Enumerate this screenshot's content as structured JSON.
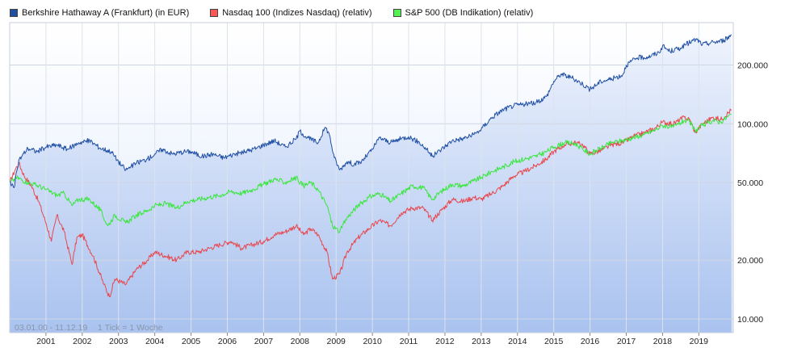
{
  "legend": [
    {
      "label": "Berkshire Hathaway A (Frankfurt) (in EUR)",
      "color": "#1f4fa5",
      "swatch": "#1f4fa5"
    },
    {
      "label": "Nasdaq 100 (Indizes Nasdaq) (relativ)",
      "color": "#e8484e",
      "swatch": "#ff5555"
    },
    {
      "label": "S&P 500 (DB Indikation) (relativ)",
      "color": "#39e63d",
      "swatch": "#55ee55"
    }
  ],
  "footer": {
    "range": "03.01.00 - 11.12.19",
    "tick_info": "1 Tick = 1 Woche"
  },
  "chart_data": {
    "type": "line",
    "yscale": "log",
    "xlim": [
      2000.0,
      2019.95
    ],
    "ylim": [
      8.5,
      330
    ],
    "x_ticks": [
      "2001",
      "2002",
      "2003",
      "2004",
      "2005",
      "2006",
      "2007",
      "2008",
      "2009",
      "2010",
      "2011",
      "2012",
      "2013",
      "2014",
      "2015",
      "2016",
      "2017",
      "2018",
      "2019"
    ],
    "y_ticks": [
      {
        "value": 10,
        "label": "10.000"
      },
      {
        "value": 20,
        "label": "20.000"
      },
      {
        "value": 50,
        "label": "50.000"
      },
      {
        "value": 100,
        "label": "100.000"
      },
      {
        "value": 200,
        "label": "200.000"
      }
    ],
    "series": [
      {
        "name": "Berkshire Hathaway A (Frankfurt) (in EUR)",
        "color": "#1f4fa5",
        "filled": true,
        "points": [
          [
            2000.0,
            50
          ],
          [
            2000.12,
            47
          ],
          [
            2000.25,
            65
          ],
          [
            2000.5,
            75
          ],
          [
            2000.75,
            72
          ],
          [
            2001.0,
            76
          ],
          [
            2001.3,
            78
          ],
          [
            2001.6,
            74
          ],
          [
            2001.9,
            80
          ],
          [
            2002.2,
            82
          ],
          [
            2002.5,
            75
          ],
          [
            2002.8,
            72
          ],
          [
            2003.0,
            64
          ],
          [
            2003.2,
            58
          ],
          [
            2003.5,
            63
          ],
          [
            2003.8,
            66
          ],
          [
            2004.0,
            70
          ],
          [
            2004.2,
            74
          ],
          [
            2004.5,
            70
          ],
          [
            2004.8,
            72
          ],
          [
            2005.0,
            72
          ],
          [
            2005.3,
            68
          ],
          [
            2005.6,
            70
          ],
          [
            2005.9,
            67
          ],
          [
            2006.2,
            70
          ],
          [
            2006.5,
            72
          ],
          [
            2006.8,
            75
          ],
          [
            2007.0,
            78
          ],
          [
            2007.3,
            82
          ],
          [
            2007.6,
            76
          ],
          [
            2007.9,
            84
          ],
          [
            2008.0,
            92
          ],
          [
            2008.2,
            85
          ],
          [
            2008.5,
            80
          ],
          [
            2008.7,
            96
          ],
          [
            2008.8,
            90
          ],
          [
            2008.95,
            67
          ],
          [
            2009.1,
            58
          ],
          [
            2009.3,
            64
          ],
          [
            2009.5,
            62
          ],
          [
            2009.7,
            64
          ],
          [
            2010.0,
            74
          ],
          [
            2010.2,
            85
          ],
          [
            2010.5,
            80
          ],
          [
            2010.8,
            84
          ],
          [
            2011.0,
            86
          ],
          [
            2011.3,
            80
          ],
          [
            2011.5,
            74
          ],
          [
            2011.65,
            68
          ],
          [
            2011.9,
            74
          ],
          [
            2012.2,
            82
          ],
          [
            2012.5,
            84
          ],
          [
            2012.8,
            88
          ],
          [
            2013.0,
            94
          ],
          [
            2013.3,
            108
          ],
          [
            2013.6,
            118
          ],
          [
            2013.9,
            124
          ],
          [
            2014.2,
            126
          ],
          [
            2014.5,
            128
          ],
          [
            2014.8,
            138
          ],
          [
            2015.0,
            165
          ],
          [
            2015.2,
            180
          ],
          [
            2015.5,
            172
          ],
          [
            2015.8,
            160
          ],
          [
            2016.0,
            150
          ],
          [
            2016.3,
            165
          ],
          [
            2016.6,
            170
          ],
          [
            2016.9,
            178
          ],
          [
            2017.0,
            200
          ],
          [
            2017.3,
            218
          ],
          [
            2017.6,
            220
          ],
          [
            2017.9,
            232
          ],
          [
            2018.0,
            250
          ],
          [
            2018.2,
            235
          ],
          [
            2018.5,
            245
          ],
          [
            2018.8,
            265
          ],
          [
            2018.95,
            270
          ],
          [
            2019.1,
            255
          ],
          [
            2019.4,
            262
          ],
          [
            2019.7,
            268
          ],
          [
            2019.9,
            286
          ]
        ]
      },
      {
        "name": "Nasdaq 100 (Indizes Nasdaq) (relativ)",
        "color": "#e8484e",
        "filled": false,
        "points": [
          [
            2000.0,
            50
          ],
          [
            2000.15,
            58
          ],
          [
            2000.25,
            63
          ],
          [
            2000.4,
            54
          ],
          [
            2000.6,
            48
          ],
          [
            2000.8,
            40
          ],
          [
            2001.0,
            31
          ],
          [
            2001.15,
            25
          ],
          [
            2001.3,
            34
          ],
          [
            2001.5,
            28
          ],
          [
            2001.72,
            19
          ],
          [
            2001.85,
            26
          ],
          [
            2002.0,
            27
          ],
          [
            2002.3,
            21
          ],
          [
            2002.6,
            15
          ],
          [
            2002.75,
            13
          ],
          [
            2002.9,
            16
          ],
          [
            2003.2,
            15
          ],
          [
            2003.5,
            18
          ],
          [
            2003.8,
            20
          ],
          [
            2004.0,
            22
          ],
          [
            2004.3,
            21
          ],
          [
            2004.6,
            20
          ],
          [
            2004.9,
            22
          ],
          [
            2005.2,
            22
          ],
          [
            2005.5,
            23
          ],
          [
            2005.8,
            24
          ],
          [
            2006.1,
            25
          ],
          [
            2006.4,
            23
          ],
          [
            2006.7,
            24
          ],
          [
            2007.0,
            25
          ],
          [
            2007.3,
            27
          ],
          [
            2007.6,
            28
          ],
          [
            2007.9,
            30
          ],
          [
            2008.1,
            27
          ],
          [
            2008.3,
            29
          ],
          [
            2008.5,
            27
          ],
          [
            2008.75,
            22
          ],
          [
            2008.9,
            16
          ],
          [
            2009.1,
            17
          ],
          [
            2009.3,
            22
          ],
          [
            2009.6,
            26
          ],
          [
            2009.9,
            29
          ],
          [
            2010.2,
            32
          ],
          [
            2010.5,
            30
          ],
          [
            2010.8,
            35
          ],
          [
            2011.1,
            37
          ],
          [
            2011.4,
            37
          ],
          [
            2011.65,
            32
          ],
          [
            2011.9,
            36
          ],
          [
            2012.2,
            41
          ],
          [
            2012.5,
            40
          ],
          [
            2012.8,
            42
          ],
          [
            2013.0,
            41
          ],
          [
            2013.3,
            44
          ],
          [
            2013.6,
            48
          ],
          [
            2013.9,
            54
          ],
          [
            2014.2,
            57
          ],
          [
            2014.5,
            61
          ],
          [
            2014.8,
            66
          ],
          [
            2015.0,
            72
          ],
          [
            2015.3,
            78
          ],
          [
            2015.6,
            80
          ],
          [
            2015.8,
            78
          ],
          [
            2016.0,
            70
          ],
          [
            2016.3,
            73
          ],
          [
            2016.6,
            78
          ],
          [
            2016.9,
            80
          ],
          [
            2017.2,
            86
          ],
          [
            2017.5,
            90
          ],
          [
            2017.8,
            95
          ],
          [
            2018.0,
            102
          ],
          [
            2018.3,
            100
          ],
          [
            2018.6,
            108
          ],
          [
            2018.75,
            105
          ],
          [
            2018.9,
            90
          ],
          [
            2019.1,
            100
          ],
          [
            2019.4,
            108
          ],
          [
            2019.6,
            105
          ],
          [
            2019.9,
            118
          ]
        ]
      },
      {
        "name": "S&P 500 (DB Indikation) (relativ)",
        "color": "#39e63d",
        "filled": false,
        "points": [
          [
            2000.0,
            50
          ],
          [
            2000.2,
            53
          ],
          [
            2000.5,
            50
          ],
          [
            2000.8,
            48
          ],
          [
            2001.0,
            46
          ],
          [
            2001.3,
            43
          ],
          [
            2001.5,
            44
          ],
          [
            2001.72,
            38
          ],
          [
            2001.9,
            41
          ],
          [
            2002.2,
            41
          ],
          [
            2002.5,
            36
          ],
          [
            2002.7,
            30
          ],
          [
            2002.9,
            34
          ],
          [
            2003.2,
            31
          ],
          [
            2003.5,
            34
          ],
          [
            2003.8,
            36
          ],
          [
            2004.0,
            38
          ],
          [
            2004.3,
            39
          ],
          [
            2004.6,
            37
          ],
          [
            2004.9,
            40
          ],
          [
            2005.2,
            41
          ],
          [
            2005.5,
            42
          ],
          [
            2005.8,
            43
          ],
          [
            2006.1,
            45
          ],
          [
            2006.4,
            44
          ],
          [
            2006.7,
            46
          ],
          [
            2007.0,
            49
          ],
          [
            2007.3,
            52
          ],
          [
            2007.6,
            50
          ],
          [
            2007.9,
            53
          ],
          [
            2008.1,
            48
          ],
          [
            2008.3,
            50
          ],
          [
            2008.5,
            46
          ],
          [
            2008.75,
            38
          ],
          [
            2008.9,
            30
          ],
          [
            2009.1,
            28
          ],
          [
            2009.3,
            33
          ],
          [
            2009.6,
            38
          ],
          [
            2009.9,
            42
          ],
          [
            2010.2,
            44
          ],
          [
            2010.5,
            40
          ],
          [
            2010.8,
            44
          ],
          [
            2011.1,
            48
          ],
          [
            2011.4,
            47
          ],
          [
            2011.65,
            41
          ],
          [
            2011.9,
            45
          ],
          [
            2012.2,
            49
          ],
          [
            2012.5,
            48
          ],
          [
            2012.8,
            51
          ],
          [
            2013.0,
            53
          ],
          [
            2013.3,
            57
          ],
          [
            2013.6,
            60
          ],
          [
            2013.9,
            64
          ],
          [
            2014.2,
            66
          ],
          [
            2014.5,
            68
          ],
          [
            2014.8,
            72
          ],
          [
            2015.0,
            76
          ],
          [
            2015.3,
            80
          ],
          [
            2015.6,
            79
          ],
          [
            2015.8,
            74
          ],
          [
            2016.0,
            70
          ],
          [
            2016.3,
            75
          ],
          [
            2016.6,
            80
          ],
          [
            2016.9,
            82
          ],
          [
            2017.2,
            85
          ],
          [
            2017.5,
            88
          ],
          [
            2017.8,
            93
          ],
          [
            2018.0,
            98
          ],
          [
            2018.3,
            96
          ],
          [
            2018.6,
            104
          ],
          [
            2018.75,
            102
          ],
          [
            2018.9,
            92
          ],
          [
            2019.1,
            98
          ],
          [
            2019.4,
            104
          ],
          [
            2019.6,
            102
          ],
          [
            2019.9,
            112
          ]
        ]
      }
    ]
  }
}
